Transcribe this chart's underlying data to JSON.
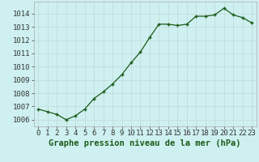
{
  "x": [
    0,
    1,
    2,
    3,
    4,
    5,
    6,
    7,
    8,
    9,
    10,
    11,
    12,
    13,
    14,
    15,
    16,
    17,
    18,
    19,
    20,
    21,
    22,
    23
  ],
  "y": [
    1006.8,
    1006.6,
    1006.4,
    1006.0,
    1006.3,
    1006.8,
    1007.6,
    1008.1,
    1008.7,
    1009.4,
    1010.3,
    1011.1,
    1012.2,
    1013.2,
    1013.2,
    1013.1,
    1013.2,
    1013.8,
    1013.8,
    1013.9,
    1014.4,
    1013.9,
    1013.7,
    1013.3
  ],
  "line_color": "#1a5c1a",
  "marker": "+",
  "bg_color": "#cff0f0",
  "grid_color": "#c0d8d8",
  "title": "Graphe pression niveau de la mer (hPa)",
  "ylim": [
    1005.5,
    1014.9
  ],
  "yticks": [
    1006,
    1007,
    1008,
    1009,
    1010,
    1011,
    1012,
    1013,
    1014
  ],
  "xticks": [
    0,
    1,
    2,
    3,
    4,
    5,
    6,
    7,
    8,
    9,
    10,
    11,
    12,
    13,
    14,
    15,
    16,
    17,
    18,
    19,
    20,
    21,
    22,
    23
  ],
  "tick_fontsize": 6.5,
  "title_fontsize": 7.5,
  "title_fontweight": "bold"
}
